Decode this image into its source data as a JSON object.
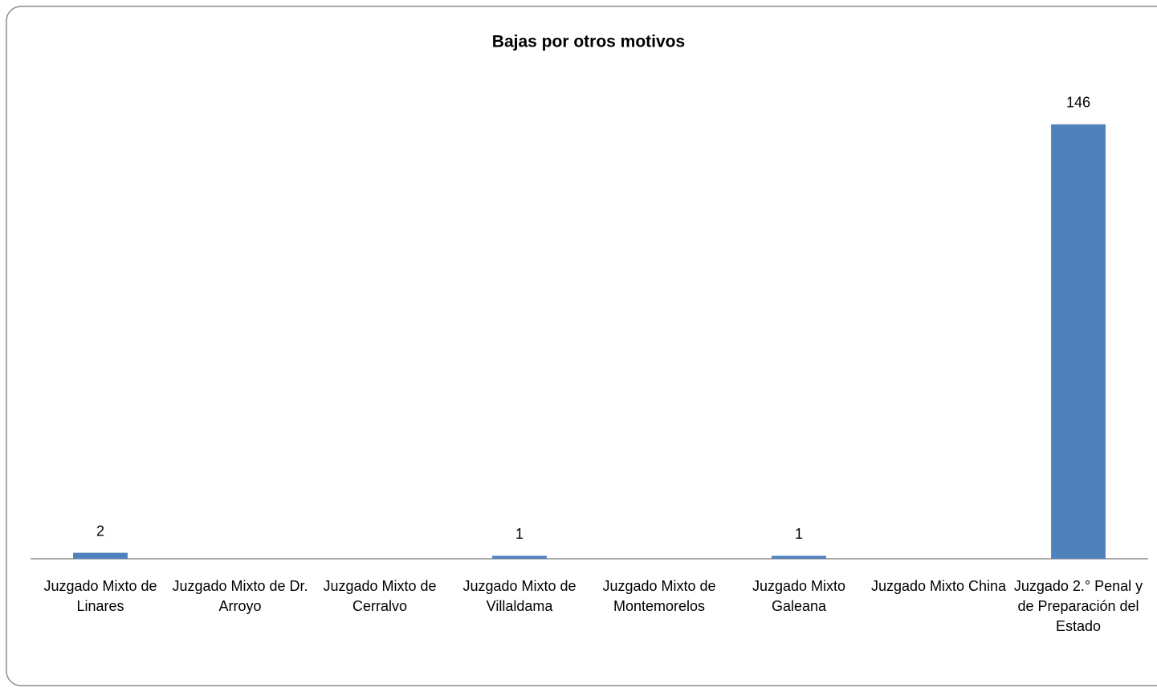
{
  "chart_data": {
    "type": "bar",
    "title": "Bajas por otros motivos",
    "categories": [
      "Juzgado Mixto de Linares",
      "Juzgado Mixto de  Dr. Arroyo",
      "Juzgado Mixto de  Cerralvo",
      "Juzgado Mixto de Villaldama",
      "Juzgado Mixto de Montemorelos",
      "Juzgado Mixto Galeana",
      "Juzgado Mixto China",
      "Juzgado 2.° Penal y de Preparación del Estado"
    ],
    "values": [
      2,
      null,
      null,
      1,
      null,
      1,
      null,
      146
    ],
    "color": "#4f81bd",
    "ylim": [
      0,
      160
    ]
  }
}
